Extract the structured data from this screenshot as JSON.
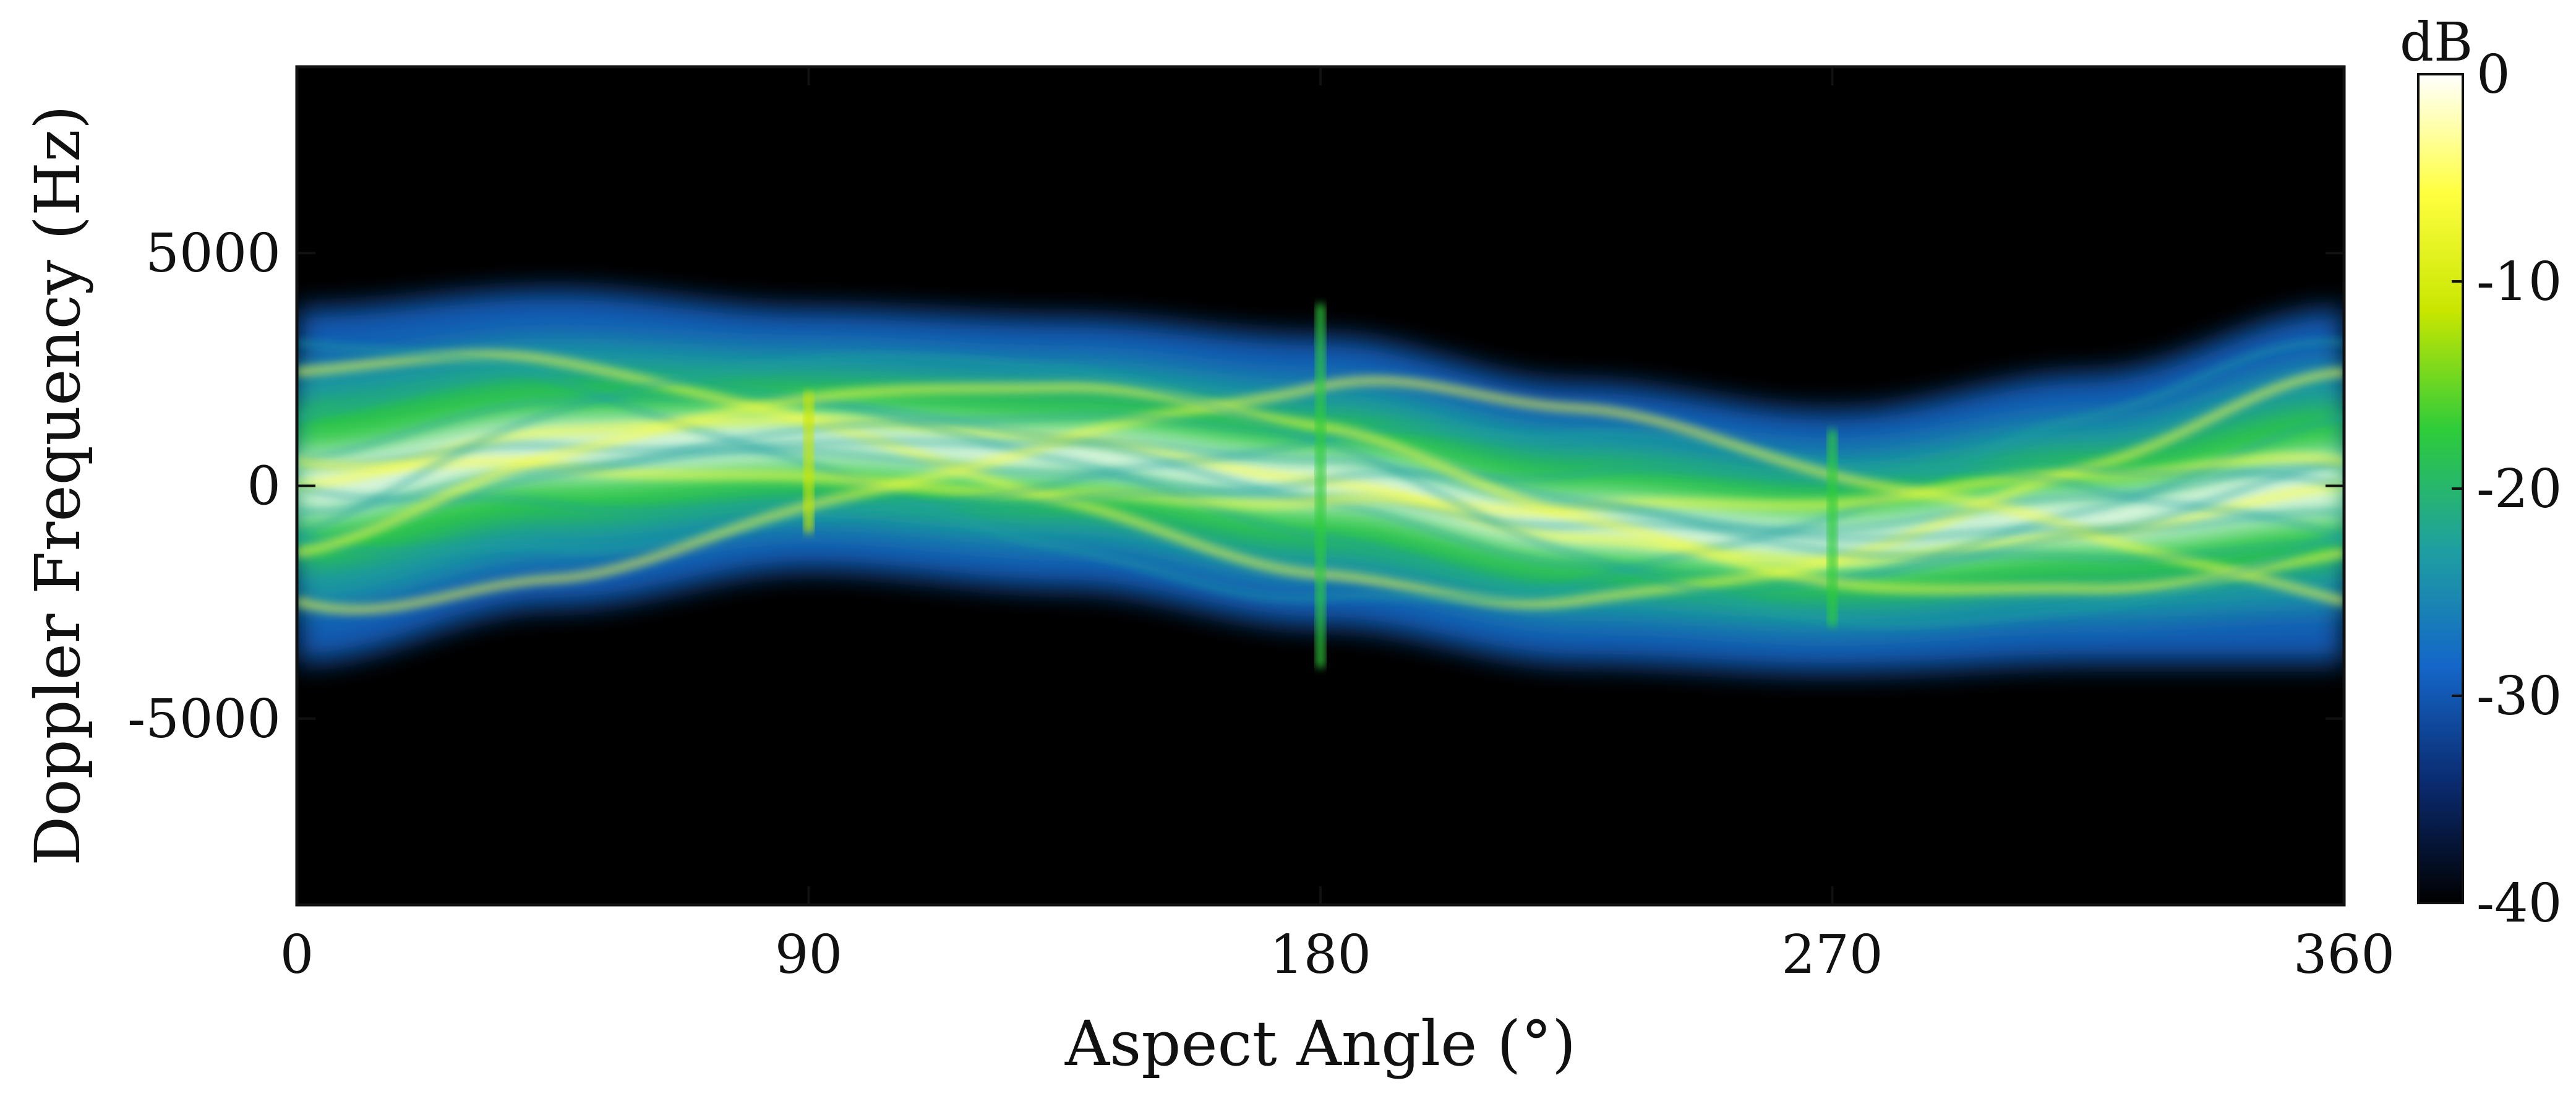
{
  "chart_data": {
    "type": "heatmap",
    "title": "",
    "xlabel": "Aspect Angle (°)",
    "ylabel": "Doppler Frequency (Hz)",
    "xlim": [
      0,
      360
    ],
    "ylim": [
      -9000,
      9000
    ],
    "x_ticks": [
      "0",
      "90",
      "180",
      "270",
      "360"
    ],
    "x_tick_values": [
      0,
      90,
      180,
      270,
      360
    ],
    "y_ticks": [
      "-5000",
      "0",
      "5000"
    ],
    "y_tick_values": [
      -5000,
      0,
      5000
    ],
    "grid": false,
    "colormap": "black-blue-green-yellow-white",
    "colormap_stops": [
      "#000000",
      "#0a2a6e",
      "#1466c8",
      "#1fa0a0",
      "#2ecc3a",
      "#c8e600",
      "#ffff40",
      "#ffffff"
    ],
    "colorbar": {
      "unit": "dB",
      "range": [
        -40,
        0
      ],
      "ticks": [
        "0",
        "-10",
        "-20",
        "-30",
        "-40"
      ],
      "tick_values": [
        0,
        -10,
        -20,
        -30,
        -40
      ],
      "placement": "right"
    },
    "signal_band": {
      "description_values": "Doppler extent of the return vs aspect angle (Hz)",
      "angles": [
        0,
        45,
        90,
        135,
        180,
        225,
        270,
        315,
        360
      ],
      "upper_hz": [
        3800,
        4200,
        3800,
        3600,
        3200,
        2200,
        1600,
        2400,
        3800
      ],
      "lower_hz": [
        -3800,
        -2600,
        -1800,
        -2200,
        -3000,
        -3800,
        -4000,
        -3800,
        -3800
      ],
      "peak_db": -2
    },
    "features": [
      {
        "angle": 180,
        "doppler_range_hz": [
          -3900,
          3900
        ],
        "level_db": -18
      },
      {
        "angle": 270,
        "doppler_range_hz": [
          -3000,
          1200
        ],
        "level_db": -20
      },
      {
        "angle": 90,
        "doppler_range_hz": [
          -1000,
          2000
        ],
        "level_db": -10
      }
    ]
  }
}
